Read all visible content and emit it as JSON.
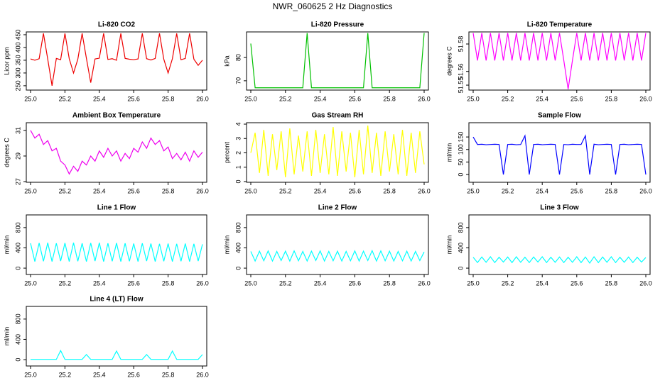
{
  "title": "NWR_060625 2 Hz Diagnostics",
  "chart_data": [
    {
      "type": "line",
      "title": "Li-820 CO2",
      "ylabel": "Licor ppm",
      "color": "#ee0000",
      "x": [
        25,
        25.025,
        25.05,
        25.075,
        25.1,
        25.125,
        25.15,
        25.175,
        25.2,
        25.225,
        25.25,
        25.275,
        25.3,
        25.325,
        25.35,
        25.375,
        25.4,
        25.425,
        25.45,
        25.475,
        25.5,
        25.525,
        25.55,
        25.575,
        25.6,
        25.625,
        25.65,
        25.675,
        25.7,
        25.725,
        25.75,
        25.775,
        25.8,
        25.825,
        25.85,
        25.875,
        25.9,
        25.925,
        25.95,
        25.975,
        26
      ],
      "values": [
        355,
        350,
        356,
        455,
        354,
        250,
        357,
        352,
        455,
        356,
        300,
        354,
        455,
        357,
        262,
        355,
        358,
        455,
        353,
        356,
        350,
        455,
        357,
        354,
        352,
        355,
        455,
        356,
        351,
        357,
        455,
        354,
        300,
        356,
        455,
        352,
        357,
        455,
        354,
        330,
        350
      ],
      "xlim": [
        25,
        26
      ],
      "ylim": [
        233,
        461
      ],
      "xticks": [
        {
          "value": 25,
          "label": "25.0"
        },
        {
          "value": 25.2,
          "label": "25.2"
        },
        {
          "value": 25.4,
          "label": "25.4"
        },
        {
          "value": 25.6,
          "label": "25.6"
        },
        {
          "value": 25.8,
          "label": "25.8"
        },
        {
          "value": 26,
          "label": "26.0"
        }
      ],
      "yticks": [
        250,
        300,
        350,
        400,
        450
      ]
    },
    {
      "type": "line",
      "title": "Li-820 Pressure",
      "ylabel": "kPa",
      "color": "#00c000",
      "x": [
        25,
        25.025,
        25.05,
        25.075,
        25.1,
        25.125,
        25.15,
        25.175,
        25.2,
        25.225,
        25.25,
        25.275,
        25.3,
        25.325,
        25.35,
        25.375,
        25.4,
        25.425,
        25.45,
        25.475,
        25.5,
        25.525,
        25.55,
        25.575,
        25.6,
        25.625,
        25.65,
        25.675,
        25.7,
        25.725,
        25.75,
        25.775,
        25.8,
        25.825,
        25.85,
        25.875,
        25.9,
        25.925,
        25.95,
        25.975,
        26
      ],
      "values": [
        86,
        67,
        67,
        67,
        67,
        67,
        67,
        67,
        67,
        67,
        67,
        67,
        67,
        90.5,
        67,
        67,
        67,
        67,
        67,
        67,
        67,
        67,
        67,
        67,
        67,
        67,
        67,
        90.5,
        67,
        67,
        67,
        67,
        67,
        67,
        67,
        67,
        67,
        67,
        67,
        67,
        90.5
      ],
      "xlim": [
        25,
        26
      ],
      "ylim": [
        66,
        91
      ],
      "xticks": [
        {
          "value": 25,
          "label": "25.0"
        },
        {
          "value": 25.2,
          "label": "25.2"
        },
        {
          "value": 25.4,
          "label": "25.4"
        },
        {
          "value": 25.6,
          "label": "25.6"
        },
        {
          "value": 25.8,
          "label": "25.8"
        },
        {
          "value": 26,
          "label": "26.0"
        }
      ],
      "yticks": [
        70,
        80
      ]
    },
    {
      "type": "line",
      "title": "Li-820 Temperature",
      "ylabel": "degrees C",
      "color": "#ff00ff",
      "x": [
        25,
        25.025,
        25.05,
        25.075,
        25.1,
        25.125,
        25.15,
        25.175,
        25.2,
        25.225,
        25.25,
        25.275,
        25.3,
        25.325,
        25.35,
        25.375,
        25.4,
        25.425,
        25.45,
        25.475,
        25.5,
        25.525,
        25.55,
        25.575,
        25.6,
        25.625,
        25.65,
        25.675,
        25.7,
        25.725,
        25.75,
        25.775,
        25.8,
        25.825,
        25.85,
        25.875,
        25.9,
        25.925,
        25.95,
        25.975,
        26
      ],
      "values": [
        51.588,
        51.568,
        51.588,
        51.568,
        51.588,
        51.568,
        51.588,
        51.568,
        51.588,
        51.568,
        51.588,
        51.568,
        51.588,
        51.568,
        51.588,
        51.568,
        51.588,
        51.568,
        51.588,
        51.568,
        51.588,
        51.568,
        51.547,
        51.568,
        51.588,
        51.568,
        51.588,
        51.568,
        51.588,
        51.568,
        51.588,
        51.568,
        51.588,
        51.568,
        51.588,
        51.568,
        51.588,
        51.568,
        51.588,
        51.568,
        51.588
      ],
      "xlim": [
        25,
        26
      ],
      "ylim": [
        51.5464,
        51.5888
      ],
      "xticks": [
        {
          "value": 25,
          "label": "25.0"
        },
        {
          "value": 25.2,
          "label": "25.2"
        },
        {
          "value": 25.4,
          "label": "25.4"
        },
        {
          "value": 25.6,
          "label": "25.6"
        },
        {
          "value": 25.8,
          "label": "25.8"
        },
        {
          "value": 26,
          "label": "26.0"
        }
      ],
      "yticks": [
        51.55,
        51.56,
        51.58
      ]
    },
    {
      "type": "line",
      "title": "Ambient Box Temperature",
      "ylabel": "degrees C",
      "color": "#ee00ee",
      "x": [
        25,
        25.025,
        25.05,
        25.075,
        25.1,
        25.125,
        25.15,
        25.175,
        25.2,
        25.225,
        25.25,
        25.275,
        25.3,
        25.325,
        25.35,
        25.375,
        25.4,
        25.425,
        25.45,
        25.475,
        25.5,
        25.525,
        25.55,
        25.575,
        25.6,
        25.625,
        25.65,
        25.675,
        25.7,
        25.725,
        25.75,
        25.775,
        25.8,
        25.825,
        25.85,
        25.875,
        25.9,
        25.925,
        25.95,
        25.975,
        26
      ],
      "values": [
        31.0,
        30.4,
        30.7,
        29.9,
        30.2,
        29.4,
        29.6,
        28.6,
        28.3,
        27.6,
        28.2,
        27.8,
        28.6,
        28.3,
        29.0,
        28.6,
        29.4,
        28.9,
        29.6,
        29.0,
        29.4,
        28.6,
        29.2,
        28.8,
        29.6,
        29.3,
        30.1,
        29.6,
        30.4,
        29.9,
        30.2,
        29.4,
        29.7,
        28.8,
        29.2,
        28.7,
        29.3,
        28.6,
        29.4,
        28.9,
        29.3
      ],
      "xlim": [
        25,
        26
      ],
      "ylim": [
        26.95,
        31.6
      ],
      "xticks": [
        {
          "value": 25,
          "label": "25.0"
        },
        {
          "value": 25.2,
          "label": "25.2"
        },
        {
          "value": 25.4,
          "label": "25.4"
        },
        {
          "value": 25.6,
          "label": "25.6"
        },
        {
          "value": 25.8,
          "label": "25.8"
        },
        {
          "value": 26,
          "label": "26.0"
        }
      ],
      "yticks": [
        27,
        29,
        31
      ]
    },
    {
      "type": "line",
      "title": "Gas Stream RH",
      "ylabel": "percent",
      "color": "#ffff00",
      "x": [
        25,
        25.025,
        25.05,
        25.075,
        25.1,
        25.125,
        25.15,
        25.175,
        25.2,
        25.225,
        25.25,
        25.275,
        25.3,
        25.325,
        25.35,
        25.375,
        25.4,
        25.425,
        25.45,
        25.475,
        25.5,
        25.525,
        25.55,
        25.575,
        25.6,
        25.625,
        25.65,
        25.675,
        25.7,
        25.725,
        25.75,
        25.775,
        25.8,
        25.825,
        25.85,
        25.875,
        25.9,
        25.925,
        25.95,
        25.975,
        26
      ],
      "values": [
        2.0,
        3.4,
        0.6,
        3.6,
        0.4,
        3.3,
        0.8,
        3.5,
        0.3,
        3.7,
        0.5,
        3.2,
        0.7,
        3.5,
        0.4,
        3.6,
        0.6,
        3.3,
        0.5,
        3.8,
        0.4,
        3.5,
        0.7,
        3.4,
        0.3,
        3.6,
        0.5,
        3.9,
        0.6,
        3.4,
        0.4,
        3.5,
        0.7,
        3.3,
        0.5,
        3.6,
        0.4,
        3.4,
        0.6,
        3.5,
        1.2
      ],
      "xlim": [
        25,
        26
      ],
      "ylim": [
        -0.05,
        4.1
      ],
      "xticks": [
        {
          "value": 25,
          "label": "25.0"
        },
        {
          "value": 25.2,
          "label": "25.2"
        },
        {
          "value": 25.4,
          "label": "25.4"
        },
        {
          "value": 25.6,
          "label": "25.6"
        },
        {
          "value": 25.8,
          "label": "25.8"
        },
        {
          "value": 26,
          "label": "26.0"
        }
      ],
      "yticks": [
        0,
        1,
        2,
        3,
        4
      ]
    },
    {
      "type": "line",
      "title": "Sample Flow",
      "ylabel": "ml/min",
      "color": "#0000ff",
      "x": [
        25,
        25.025,
        25.05,
        25.075,
        25.1,
        25.125,
        25.15,
        25.175,
        25.2,
        25.225,
        25.25,
        25.275,
        25.3,
        25.325,
        25.35,
        25.375,
        25.4,
        25.425,
        25.45,
        25.475,
        25.5,
        25.525,
        25.55,
        25.575,
        25.6,
        25.625,
        25.65,
        25.675,
        25.7,
        25.725,
        25.75,
        25.775,
        25.8,
        25.825,
        25.85,
        25.875,
        25.9,
        25.925,
        25.95,
        25.975,
        26
      ],
      "values": [
        150,
        120,
        121,
        119,
        120,
        121,
        120,
        0,
        120,
        121,
        119,
        120,
        155,
        0,
        120,
        121,
        119,
        120,
        121,
        120,
        0,
        120,
        119,
        121,
        120,
        120,
        155,
        0,
        121,
        119,
        120,
        121,
        120,
        0,
        120,
        121,
        119,
        120,
        121,
        120,
        0
      ],
      "xlim": [
        25,
        26
      ],
      "ylim": [
        -31,
        207
      ],
      "xticks": [
        {
          "value": 25,
          "label": "25.0"
        },
        {
          "value": 25.2,
          "label": "25.2"
        },
        {
          "value": 25.4,
          "label": "25.4"
        },
        {
          "value": 25.6,
          "label": "25.6"
        },
        {
          "value": 25.8,
          "label": "25.8"
        },
        {
          "value": 26,
          "label": "26.0"
        }
      ],
      "yticks": [
        0,
        50,
        100,
        150
      ]
    },
    {
      "type": "line",
      "title": "Line 1 Flow",
      "ylabel": "ml/min",
      "color": "#00ffff",
      "x": [
        25,
        25.025,
        25.05,
        25.075,
        25.1,
        25.125,
        25.15,
        25.175,
        25.2,
        25.225,
        25.25,
        25.275,
        25.3,
        25.325,
        25.35,
        25.375,
        25.4,
        25.425,
        25.45,
        25.475,
        25.5,
        25.525,
        25.55,
        25.575,
        25.6,
        25.625,
        25.65,
        25.675,
        25.7,
        25.725,
        25.75,
        25.775,
        25.8,
        25.825,
        25.85,
        25.875,
        25.9,
        25.925,
        25.95,
        25.975,
        26
      ],
      "values": [
        490,
        130,
        495,
        135,
        500,
        130,
        490,
        140,
        495,
        130,
        500,
        135,
        490,
        130,
        495,
        140,
        500,
        130,
        490,
        135,
        495,
        130,
        490,
        135,
        485,
        130,
        490,
        140,
        485,
        130,
        480,
        135,
        485,
        130,
        480,
        135,
        485,
        130,
        480,
        140,
        470
      ],
      "xlim": [
        25,
        26
      ],
      "ylim": [
        -125,
        1050
      ],
      "xticks": [
        {
          "value": 25,
          "label": "25.0"
        },
        {
          "value": 25.2,
          "label": "25.2"
        },
        {
          "value": 25.4,
          "label": "25.4"
        },
        {
          "value": 25.6,
          "label": "25.6"
        },
        {
          "value": 25.8,
          "label": "25.8"
        },
        {
          "value": 26,
          "label": "26.0"
        }
      ],
      "yticks": [
        0,
        400,
        800
      ]
    },
    {
      "type": "line",
      "title": "Line 2 Flow",
      "ylabel": "ml/min",
      "color": "#00ffff",
      "x": [
        25,
        25.025,
        25.05,
        25.075,
        25.1,
        25.125,
        25.15,
        25.175,
        25.2,
        25.225,
        25.25,
        25.275,
        25.3,
        25.325,
        25.35,
        25.375,
        25.4,
        25.425,
        25.45,
        25.475,
        25.5,
        25.525,
        25.55,
        25.575,
        25.6,
        25.625,
        25.65,
        25.675,
        25.7,
        25.725,
        25.75,
        25.775,
        25.8,
        25.825,
        25.85,
        25.875,
        25.9,
        25.925,
        25.95,
        25.975,
        26
      ],
      "values": [
        330,
        140,
        335,
        145,
        340,
        140,
        330,
        150,
        335,
        140,
        340,
        145,
        330,
        140,
        335,
        150,
        340,
        140,
        330,
        145,
        335,
        140,
        330,
        145,
        340,
        140,
        335,
        150,
        345,
        140,
        340,
        145,
        335,
        140,
        330,
        145,
        335,
        140,
        330,
        150,
        320
      ],
      "xlim": [
        25,
        26
      ],
      "ylim": [
        -125,
        1050
      ],
      "xticks": [
        {
          "value": 25,
          "label": "25.0"
        },
        {
          "value": 25.2,
          "label": "25.2"
        },
        {
          "value": 25.4,
          "label": "25.4"
        },
        {
          "value": 25.6,
          "label": "25.6"
        },
        {
          "value": 25.8,
          "label": "25.8"
        },
        {
          "value": 26,
          "label": "26.0"
        }
      ],
      "yticks": [
        0,
        400,
        800
      ]
    },
    {
      "type": "line",
      "title": "Line 3 Flow",
      "ylabel": "ml/min",
      "color": "#00ffff",
      "x": [
        25,
        25.025,
        25.05,
        25.075,
        25.1,
        25.125,
        25.15,
        25.175,
        25.2,
        25.225,
        25.25,
        25.275,
        25.3,
        25.325,
        25.35,
        25.375,
        25.4,
        25.425,
        25.45,
        25.475,
        25.5,
        25.525,
        25.55,
        25.575,
        25.6,
        25.625,
        25.65,
        25.675,
        25.7,
        25.725,
        25.75,
        25.775,
        25.8,
        25.825,
        25.85,
        25.875,
        25.9,
        25.925,
        25.95,
        25.975,
        26
      ],
      "values": [
        215,
        110,
        220,
        115,
        225,
        110,
        215,
        120,
        220,
        110,
        225,
        115,
        215,
        110,
        220,
        120,
        225,
        110,
        215,
        115,
        220,
        110,
        215,
        115,
        225,
        110,
        220,
        100,
        225,
        110,
        220,
        115,
        225,
        110,
        215,
        115,
        220,
        110,
        215,
        120,
        210
      ],
      "xlim": [
        25,
        26
      ],
      "ylim": [
        -125,
        1050
      ],
      "xticks": [
        {
          "value": 25,
          "label": "25.0"
        },
        {
          "value": 25.2,
          "label": "25.2"
        },
        {
          "value": 25.4,
          "label": "25.4"
        },
        {
          "value": 25.6,
          "label": "25.6"
        },
        {
          "value": 25.8,
          "label": "25.8"
        },
        {
          "value": 26,
          "label": "26.0"
        }
      ],
      "yticks": [
        0,
        400,
        800
      ]
    },
    {
      "type": "line",
      "title": "Line 4 (LT) Flow",
      "ylabel": "ml/min",
      "color": "#00ffff",
      "x": [
        25,
        25.025,
        25.05,
        25.075,
        25.1,
        25.125,
        25.15,
        25.175,
        25.2,
        25.225,
        25.25,
        25.275,
        25.3,
        25.325,
        25.35,
        25.375,
        25.4,
        25.425,
        25.45,
        25.475,
        25.5,
        25.525,
        25.55,
        25.575,
        25.6,
        25.625,
        25.65,
        25.675,
        25.7,
        25.725,
        25.75,
        25.775,
        25.8,
        25.825,
        25.85,
        25.875,
        25.9,
        25.925,
        25.95,
        25.975,
        26
      ],
      "values": [
        5,
        5,
        5,
        5,
        5,
        5,
        5,
        180,
        5,
        5,
        5,
        5,
        5,
        100,
        5,
        5,
        5,
        5,
        5,
        5,
        170,
        5,
        5,
        5,
        5,
        5,
        5,
        100,
        5,
        5,
        5,
        5,
        5,
        170,
        5,
        5,
        5,
        5,
        5,
        5,
        100
      ],
      "xlim": [
        25,
        26
      ],
      "ylim": [
        -125,
        1050
      ],
      "xticks": [
        {
          "value": 25,
          "label": "25.0"
        },
        {
          "value": 25.2,
          "label": "25.2"
        },
        {
          "value": 25.4,
          "label": "25.4"
        },
        {
          "value": 25.6,
          "label": "25.6"
        },
        {
          "value": 25.8,
          "label": "25.8"
        },
        {
          "value": 26,
          "label": "26.0"
        }
      ],
      "yticks": [
        0,
        400,
        800
      ]
    }
  ]
}
